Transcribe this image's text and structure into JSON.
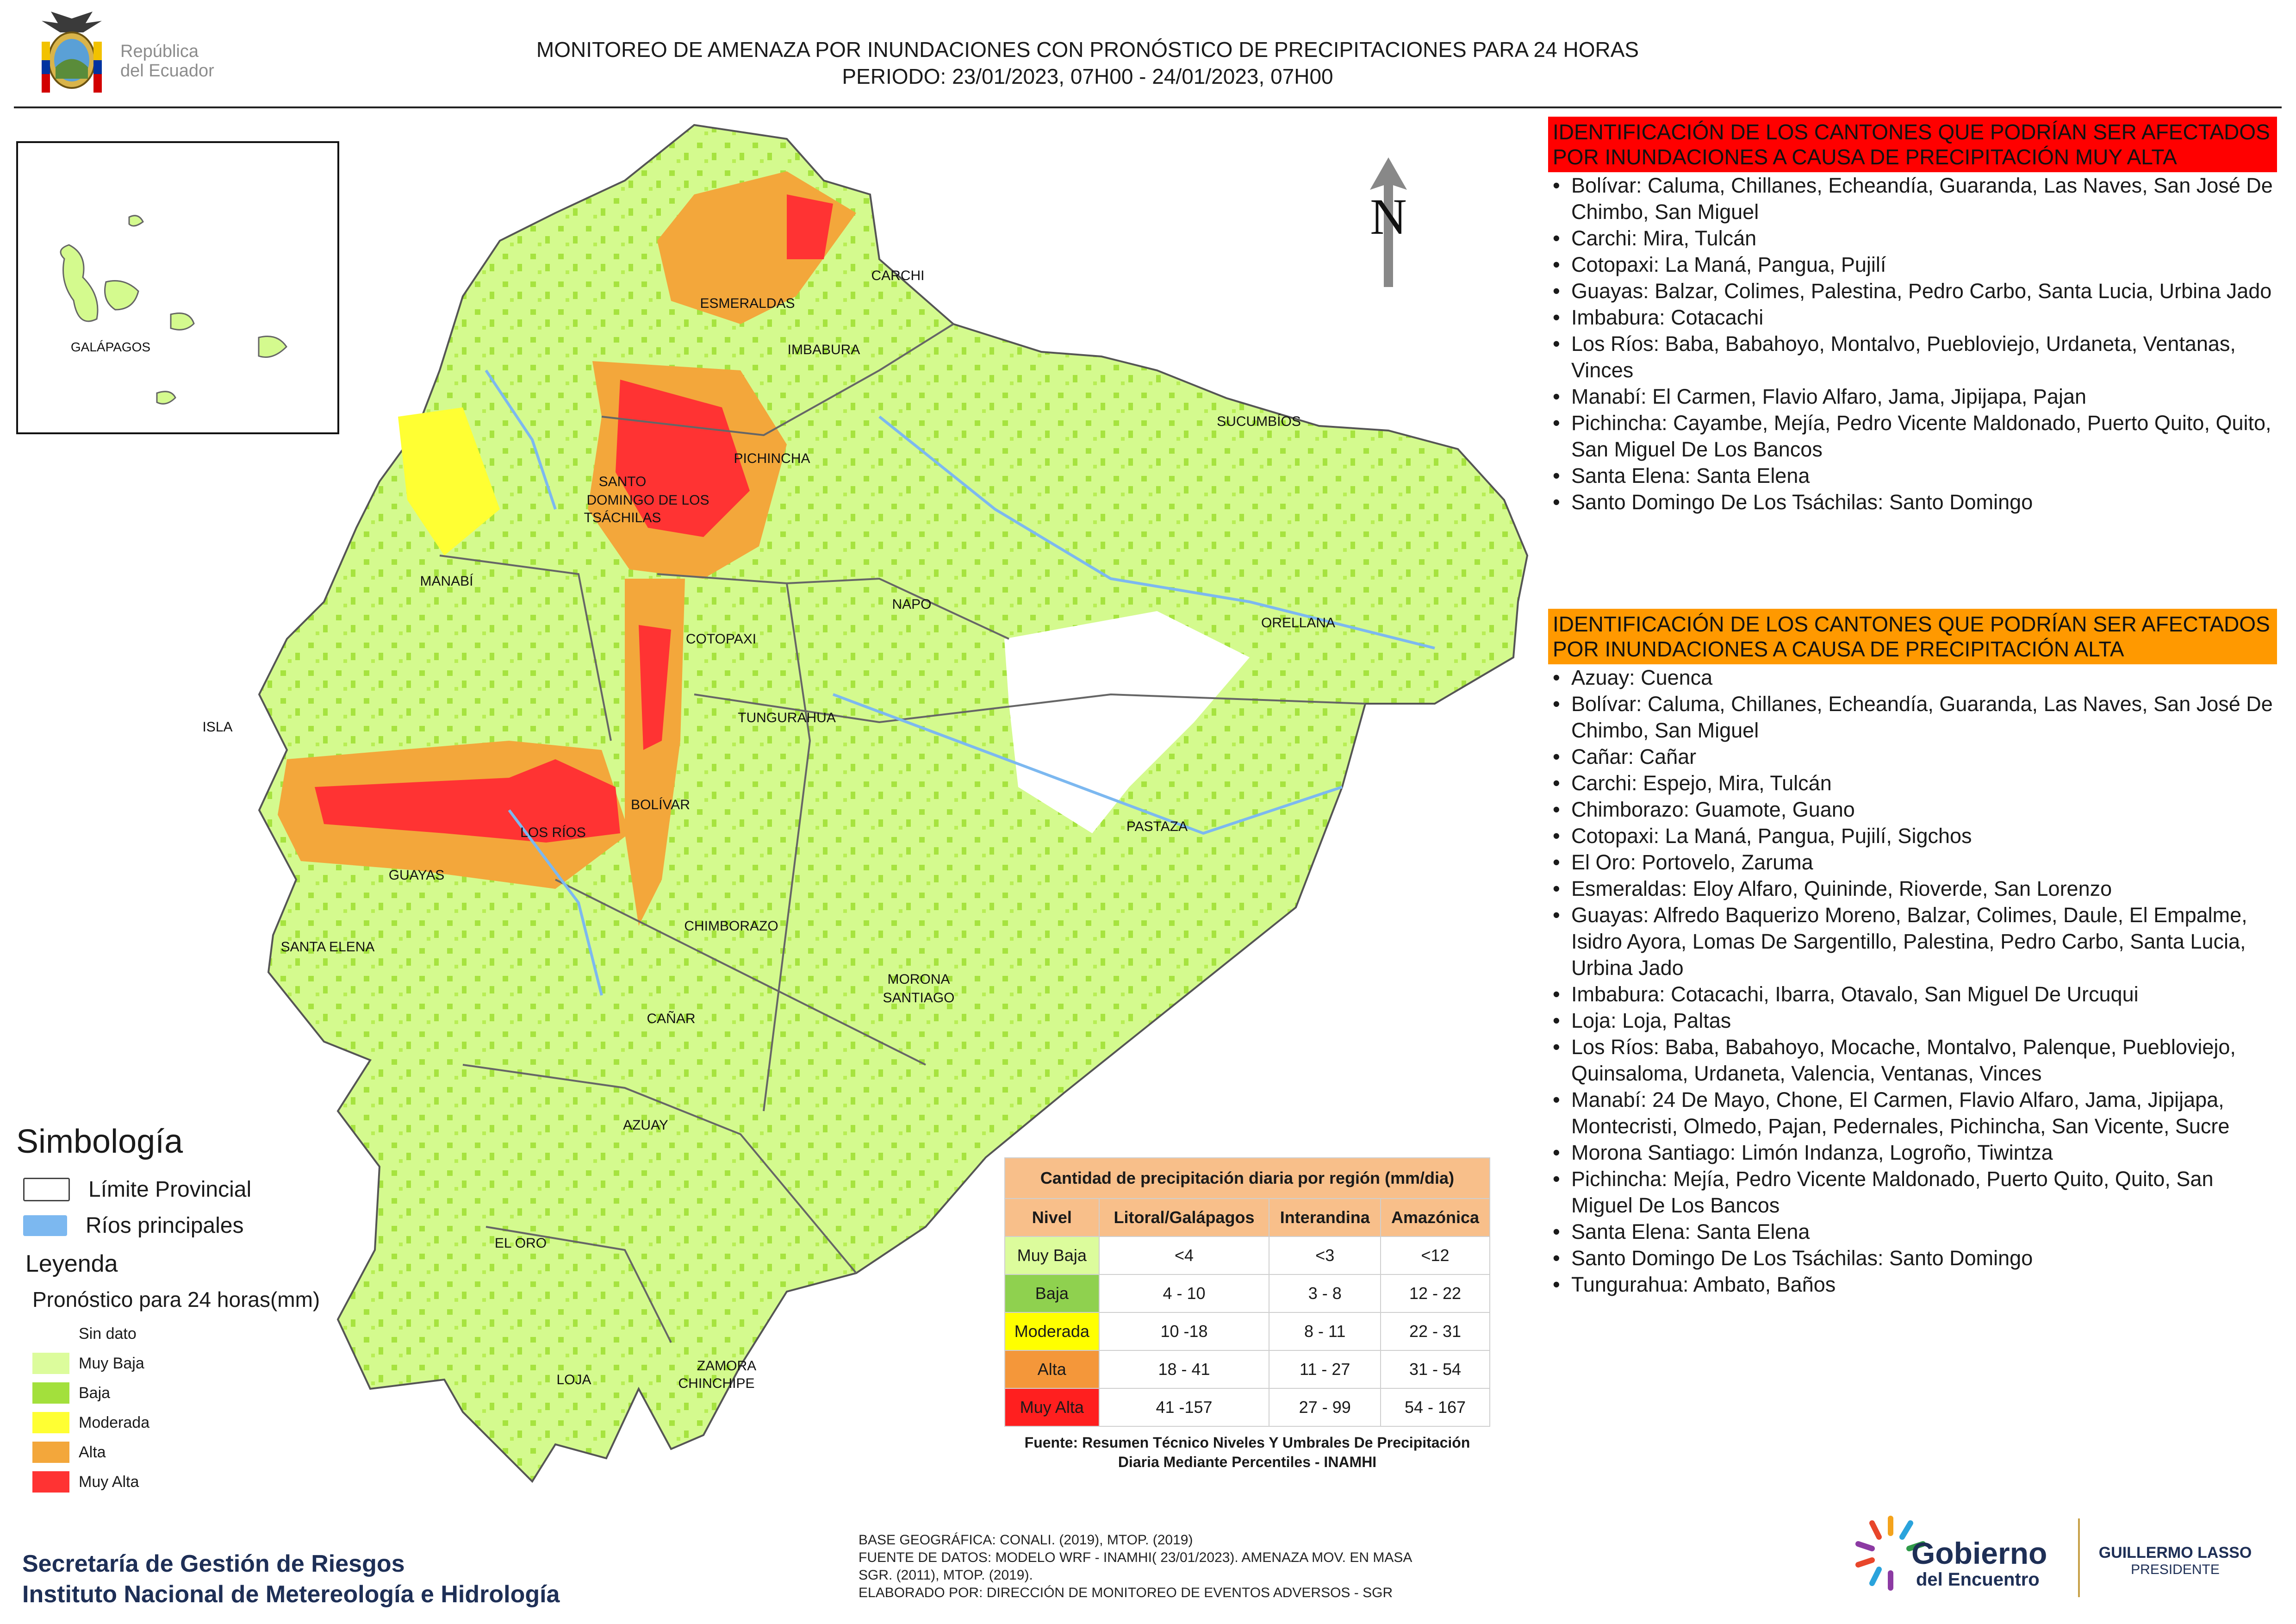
{
  "header": {
    "line1": "MONITOREO DE AMENAZA POR INUNDACIONES  CON PRONÓSTICO DE  PRECIPITACIONES PARA 24 HORAS",
    "line2": "PERIODO: 23/01/2023, 07H00 - 24/01/2023, 07H00",
    "logo_text_1": "República",
    "logo_text_2": "del Ecuador"
  },
  "map": {
    "north_label": "N",
    "inset_label": "GALÁPAGOS",
    "isla_label": "ISLA",
    "provinces": [
      "CARCHI",
      "ESMERALDAS",
      "IMBABURA",
      "SUCUMBÍOS",
      "PICHINCHA",
      "SANTO",
      "DOMINGO DE LOS",
      "TSÁCHILAS",
      "MANABÍ",
      "NAPO",
      "ORELLANA",
      "COTOPAXI",
      "TUNGURAHUA",
      "BOLÍVAR",
      "LOS RÍOS",
      "GUAYAS",
      "PASTAZA",
      "SANTA ELENA",
      "CHIMBORAZO",
      "MORONA",
      "SANTIAGO",
      "CAÑAR",
      "AZUAY",
      "EL ORO",
      "LOJA",
      "ZAMORA",
      "CHINCHIPE"
    ]
  },
  "panel_very_high": {
    "heading": "IDENTIFICACIÓN DE LOS CANTONES QUE PODRÍAN SER AFECTADOS POR INUNDACIONES  A CAUSA DE PRECIPITACIÓN MUY ALTA",
    "items": [
      "Bolívar: Caluma, Chillanes, Echeandía, Guaranda, Las Naves, San José De Chimbo, San Miguel",
      "Carchi: Mira, Tulcán",
      "Cotopaxi: La Maná, Pangua, Pujilí",
      "Guayas: Balzar, Colimes, Palestina, Pedro Carbo, Santa Lucia, Urbina Jado",
      "Imbabura: Cotacachi",
      "Los Ríos: Baba, Babahoyo, Montalvo, Puebloviejo, Urdaneta, Ventanas, Vinces",
      "Manabí: El Carmen, Flavio Alfaro, Jama, Jipijapa, Pajan",
      "Pichincha: Cayambe, Mejía, Pedro Vicente Maldonado, Puerto Quito, Quito, San Miguel De Los Bancos",
      "Santa Elena: Santa Elena",
      "Santo Domingo De Los Tsáchilas: Santo Domingo"
    ]
  },
  "panel_high": {
    "heading": "IDENTIFICACIÓN DE LOS CANTONES QUE  PODRÍAN SER AFECTADOS POR INUNDACIONES  A CAUSA DE PRECIPITACIÓN ALTA",
    "items": [
      "Azuay: Cuenca",
      "Bolívar: Caluma, Chillanes, Echeandía, Guaranda, Las Naves, San José De Chimbo, San Miguel",
      "Cañar: Cañar",
      "Carchi: Espejo, Mira, Tulcán",
      "Chimborazo: Guamote, Guano",
      "Cotopaxi: La Maná, Pangua, Pujilí, Sigchos",
      "El Oro: Portovelo, Zaruma",
      "Esmeraldas: Eloy Alfaro, Quininde, Rioverde, San Lorenzo",
      "Guayas: Alfredo Baquerizo Moreno, Balzar, Colimes, Daule, El Empalme, Isidro Ayora, Lomas De Sargentillo, Palestina, Pedro Carbo, Santa Lucia, Urbina Jado",
      "Imbabura: Cotacachi, Ibarra, Otavalo, San Miguel De Urcuqui",
      "Loja: Loja, Paltas",
      "Los Ríos: Baba, Babahoyo, Mocache, Montalvo, Palenque, Puebloviejo, Quinsaloma, Urdaneta, Valencia, Ventanas, Vinces",
      "Manabí: 24 De Mayo, Chone, El Carmen, Flavio Alfaro, Jama, Jipijapa, Montecristi, Olmedo, Pajan, Pedernales, Pichincha, San Vicente, Sucre",
      "Morona Santiago: Limón Indanza, Logroño, Tiwintza",
      "Pichincha: Mejía, Pedro Vicente Maldonado, Puerto Quito, Quito, San Miguel De Los Bancos",
      "Santa Elena: Santa Elena",
      "Santo Domingo De Los Tsáchilas: Santo Domingo",
      "Tungurahua: Ambato, Baños"
    ]
  },
  "legend": {
    "simbologia": "Simbología",
    "limite": "Límite Provincial",
    "rios": "Ríos principales",
    "leyenda": "Leyenda",
    "pronostico": "Pronóstico para 24 horas(mm)",
    "classes": [
      {
        "label": "Sin dato",
        "color": "#ffffff"
      },
      {
        "label": " Muy Baja",
        "color": "#dcfc9c"
      },
      {
        "label": "Baja",
        "color": "#a3e03c"
      },
      {
        "label": "Moderada",
        "color": "#ffff33"
      },
      {
        "label": "Alta",
        "color": "#f3a73b"
      },
      {
        "label": "Muy Alta",
        "color": "#ff3333"
      }
    ]
  },
  "table": {
    "caption": "Cantidad de precipitación diaria por región (mm/dia)",
    "headers": [
      "Nivel",
      "Litoral/Galápagos",
      "Interandina",
      "Amazónica"
    ],
    "rows": [
      {
        "nivel": "Muy Baja",
        "color": "#dcfc9c",
        "values": [
          "<4",
          "<3",
          "<12"
        ]
      },
      {
        "nivel": "Baja",
        "color": "#8fd14f",
        "values": [
          "4 - 10",
          "3 - 8",
          "12 - 22"
        ]
      },
      {
        "nivel": "Moderada",
        "color": "#ffff00",
        "values": [
          "10 -18",
          "8 - 11",
          "22 - 31"
        ]
      },
      {
        "nivel": "Alta",
        "color": "#f4973a",
        "values": [
          "18 - 41",
          "11 - 27",
          "31 - 54"
        ]
      },
      {
        "nivel": "Muy Alta",
        "color": "#ff1f1f",
        "values": [
          "41 -157",
          "27 - 99",
          "54 - 167"
        ]
      }
    ],
    "note": "Fuente: Resumen Técnico Niveles Y Umbrales De Precipitación Diaria Mediante Percentiles - INAMHI"
  },
  "footer": {
    "org1": "Secretaría de Gestión de Riesgos",
    "org2": "Instituto Nacional de Metereología e Hidrología",
    "src1": "BASE GEOGRÁFICA: CONALI. (2019), MTOP. (2019)",
    "src2": "FUENTE DE DATOS: MODELO WRF - INAMHI( 23/01/2023).  AMENAZA MOV. EN MASA",
    "src3": "SGR. (2011), MTOP. (2019).",
    "src4": "ELABORADO POR: DIRECCIÓN DE MONITOREO DE EVENTOS ADVERSOS - SGR",
    "gob1": "Gobierno",
    "gob2": "del Encuentro",
    "pres1": "GUILLERMO LASSO",
    "pres2": "PRESIDENTE"
  }
}
